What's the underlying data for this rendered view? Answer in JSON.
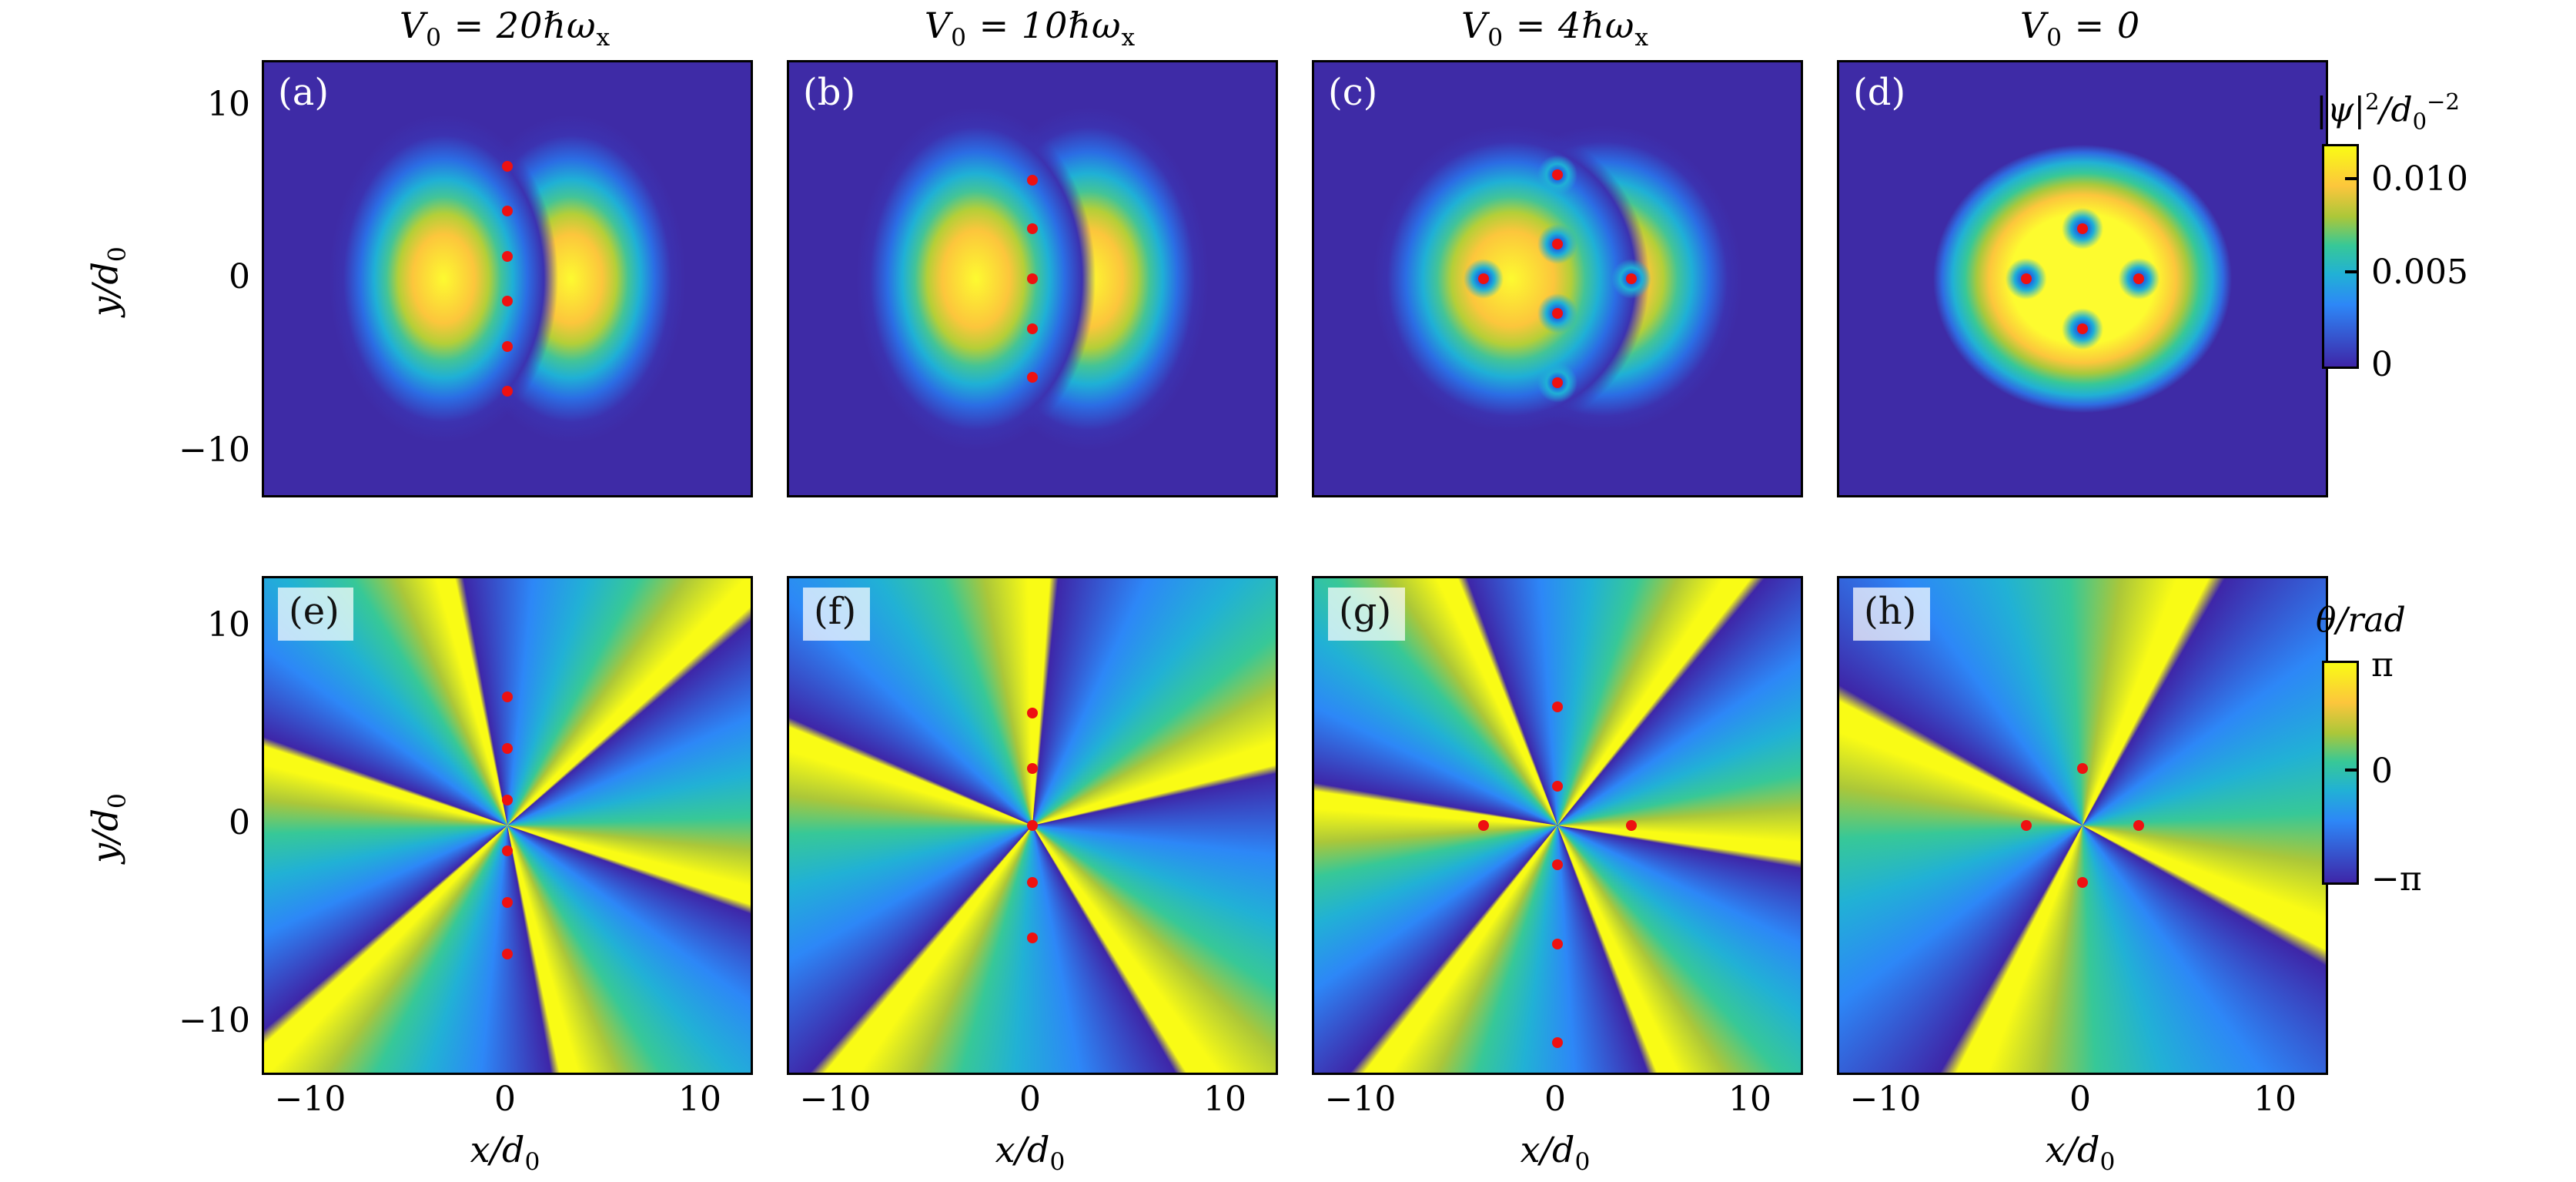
{
  "figure": {
    "description_colors": {
      "background": "#ffffff",
      "colormap": "parula",
      "parula_stops": [
        "#3e26a8",
        "#2d87f7",
        "#21b1d5",
        "#37c897",
        "#abc739",
        "#f9fb15"
      ],
      "vortex_marker": "#ee1111",
      "panel_border": "#000000"
    },
    "titles": [
      {
        "pre": "V",
        "presub": "0",
        "main": " = 20ℏω",
        "sub": "x"
      },
      {
        "pre": "V",
        "presub": "0",
        "main": " = 10ℏω",
        "sub": "x"
      },
      {
        "pre": "V",
        "presub": "0",
        "main": " = 4ℏω",
        "sub": "x"
      },
      {
        "pre": "V",
        "presub": "0",
        "main": " = 0",
        "sub": ""
      }
    ],
    "axes": {
      "ylabel_main": "y/d",
      "ylabel_sub": "0",
      "xlabel_main": "x/d",
      "xlabel_sub": "0",
      "y_ticks": [
        "10",
        "0",
        "−10"
      ],
      "x_ticks": [
        "−10",
        "0",
        "10"
      ]
    },
    "colorbars": {
      "density": {
        "label_psi": "|ψ|",
        "label_sup": "2",
        "label_slashd": "/d",
        "label_sub": "0",
        "label_sup2": "−2",
        "ticks": [
          "0.010",
          "0.005",
          "0"
        ]
      },
      "phase": {
        "label": "θ/rad",
        "ticks": [
          "π",
          "0",
          "−π"
        ]
      }
    }
  },
  "chart_data": {
    "type": "heatmap",
    "layout": "2 rows × 4 columns of pseudocolor maps, shared axes, two colorbars on right",
    "x_range": [
      -12.5,
      12.5
    ],
    "y_range": [
      -12.5,
      12.5
    ],
    "xlabel": "x/d0",
    "ylabel": "y/d0",
    "x_tick_values": [
      -10,
      0,
      10
    ],
    "y_tick_values": [
      10,
      0,
      -10
    ],
    "rows": [
      {
        "name": "density",
        "quantity": "|ψ|²/d0⁻²",
        "colorbar_ticks": [
          0,
          0.005,
          0.01
        ],
        "colorbar_range": [
          0,
          0.012
        ]
      },
      {
        "name": "phase",
        "quantity": "θ/rad",
        "colorbar_ticks": [
          "−π",
          "0",
          "π"
        ],
        "colorbar_range": [
          "−π",
          "π"
        ]
      }
    ],
    "panels": [
      {
        "label": "(a)",
        "row": "density",
        "column_title": "V0 = 20ℏωx",
        "vortices": [
          [
            0,
            6.5
          ],
          [
            0,
            3.9
          ],
          [
            0,
            1.3
          ],
          [
            0,
            -1.3
          ],
          [
            0,
            -3.9
          ],
          [
            0,
            -6.5
          ]
        ]
      },
      {
        "label": "(b)",
        "row": "density",
        "column_title": "V0 = 10ℏωx",
        "vortices": [
          [
            0,
            5.7
          ],
          [
            0,
            2.9
          ],
          [
            0,
            0
          ],
          [
            0,
            -2.9
          ],
          [
            0,
            -5.7
          ]
        ]
      },
      {
        "label": "(c)",
        "row": "density",
        "column_title": "V0 = 4ℏωx",
        "vortices": [
          [
            0,
            6.0
          ],
          [
            0,
            2.0
          ],
          [
            -3.8,
            0
          ],
          [
            3.8,
            0
          ],
          [
            0,
            -2.0
          ],
          [
            0,
            -6.0
          ]
        ]
      },
      {
        "label": "(d)",
        "row": "density",
        "column_title": "V0 = 0",
        "vortices": [
          [
            0,
            2.9
          ],
          [
            -2.9,
            0
          ],
          [
            2.9,
            0
          ],
          [
            0,
            -2.9
          ]
        ]
      },
      {
        "label": "(e)",
        "row": "phase",
        "column_title": "V0 = 20ℏωx",
        "vortices": [
          [
            0,
            6.5
          ],
          [
            0,
            3.9
          ],
          [
            0,
            1.3
          ],
          [
            0,
            -1.3
          ],
          [
            0,
            -3.9
          ],
          [
            0,
            -6.5
          ]
        ]
      },
      {
        "label": "(f)",
        "row": "phase",
        "column_title": "V0 = 10ℏωx",
        "vortices": [
          [
            0,
            5.7
          ],
          [
            0,
            2.9
          ],
          [
            0,
            0
          ],
          [
            0,
            -2.9
          ],
          [
            0,
            -5.7
          ]
        ]
      },
      {
        "label": "(g)",
        "row": "phase",
        "column_title": "V0 = 4ℏωx",
        "vortices": [
          [
            0,
            6.0
          ],
          [
            0,
            2.0
          ],
          [
            -3.8,
            0
          ],
          [
            3.8,
            0
          ],
          [
            0,
            -2.0
          ],
          [
            0,
            -6.0
          ],
          [
            0,
            -11.0
          ]
        ]
      },
      {
        "label": "(h)",
        "row": "phase",
        "column_title": "V0 = 0",
        "vortices": [
          [
            0,
            2.9
          ],
          [
            -2.9,
            0
          ],
          [
            2.9,
            0
          ],
          [
            0,
            -2.9
          ]
        ]
      }
    ]
  }
}
